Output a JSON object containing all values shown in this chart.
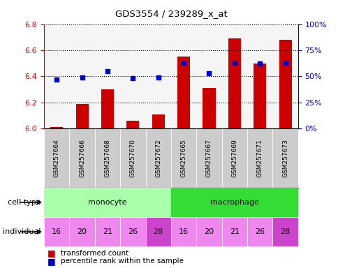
{
  "title": "GDS3554 / 239289_x_at",
  "samples": [
    "GSM257664",
    "GSM257666",
    "GSM257668",
    "GSM257670",
    "GSM257672",
    "GSM257665",
    "GSM257667",
    "GSM257669",
    "GSM257671",
    "GSM257673"
  ],
  "transformed_count": [
    6.01,
    6.19,
    6.3,
    6.06,
    6.11,
    6.55,
    6.31,
    6.69,
    6.5,
    6.68
  ],
  "percentile_rank": [
    47,
    49,
    55,
    48,
    49,
    63,
    53,
    63,
    62,
    63
  ],
  "ylim_left": [
    6.0,
    6.8
  ],
  "ylim_right": [
    0,
    100
  ],
  "yticks_left": [
    6.0,
    6.2,
    6.4,
    6.6,
    6.8
  ],
  "yticks_right": [
    0,
    25,
    50,
    75,
    100
  ],
  "ytick_labels_right": [
    "0%",
    "25%",
    "50%",
    "75%",
    "100%"
  ],
  "individuals": [
    "16",
    "20",
    "21",
    "26",
    "28",
    "16",
    "20",
    "21",
    "26",
    "28"
  ],
  "cell_type_groups": [
    {
      "label": "monocyte",
      "start": 0,
      "end": 5,
      "color": "#AAFFAA"
    },
    {
      "label": "macrophage",
      "start": 5,
      "end": 10,
      "color": "#33DD33"
    }
  ],
  "individual_colors": [
    "#EE88EE",
    "#EE88EE",
    "#EE88EE",
    "#EE88EE",
    "#CC44CC",
    "#EE88EE",
    "#EE88EE",
    "#EE88EE",
    "#EE88EE",
    "#CC44CC"
  ],
  "bar_color": "#CC0000",
  "dot_color": "#0000CC",
  "bar_width": 0.5,
  "left_axis_color": "#CC0000",
  "right_axis_color": "#0000CC",
  "background_color": "#ffffff",
  "grid_color": "#000000",
  "legend_red": "transformed count",
  "legend_blue": "percentile rank within the sample",
  "sample_bg_color": "#CCCCCC",
  "sample_bg_alt": "#E0E0E0"
}
